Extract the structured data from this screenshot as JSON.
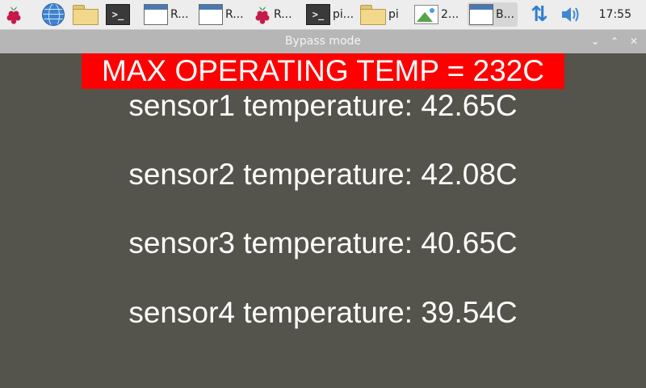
{
  "taskbar": {
    "items": [
      {
        "icon": "raspberry-pi-icon",
        "label": ""
      },
      {
        "icon": "globe-icon",
        "label": ""
      },
      {
        "icon": "folder-icon",
        "label": ""
      },
      {
        "icon": "terminal-icon",
        "label": ""
      },
      {
        "icon": "window-icon",
        "label": "R..."
      },
      {
        "icon": "window-icon",
        "label": "R..."
      },
      {
        "icon": "raspberry-pi-icon",
        "label": "R..."
      },
      {
        "icon": "terminal-icon",
        "label": "pi..."
      },
      {
        "icon": "folder-icon",
        "label": "pi"
      },
      {
        "icon": "image-icon",
        "label": "2..."
      },
      {
        "icon": "window-icon",
        "label": "B..."
      }
    ],
    "clock": "17:55",
    "tray": [
      "network-arrows-icon",
      "volume-icon"
    ]
  },
  "window": {
    "title": "Bypass mode",
    "controls": [
      "chevron-down-icon",
      "chevron-up-icon",
      "close-icon"
    ]
  },
  "main": {
    "max_temp": "MAX OPERATING TEMP = 232C",
    "sensors": [
      "sensor1 temperature: 42.65C",
      "sensor2 temperature: 42.08C",
      "sensor3 temperature: 40.65C",
      "sensor4 temperature: 39.54C"
    ]
  },
  "colors": {
    "banner": "#fe0000",
    "background": "#54544c",
    "text": "#ffffff"
  }
}
